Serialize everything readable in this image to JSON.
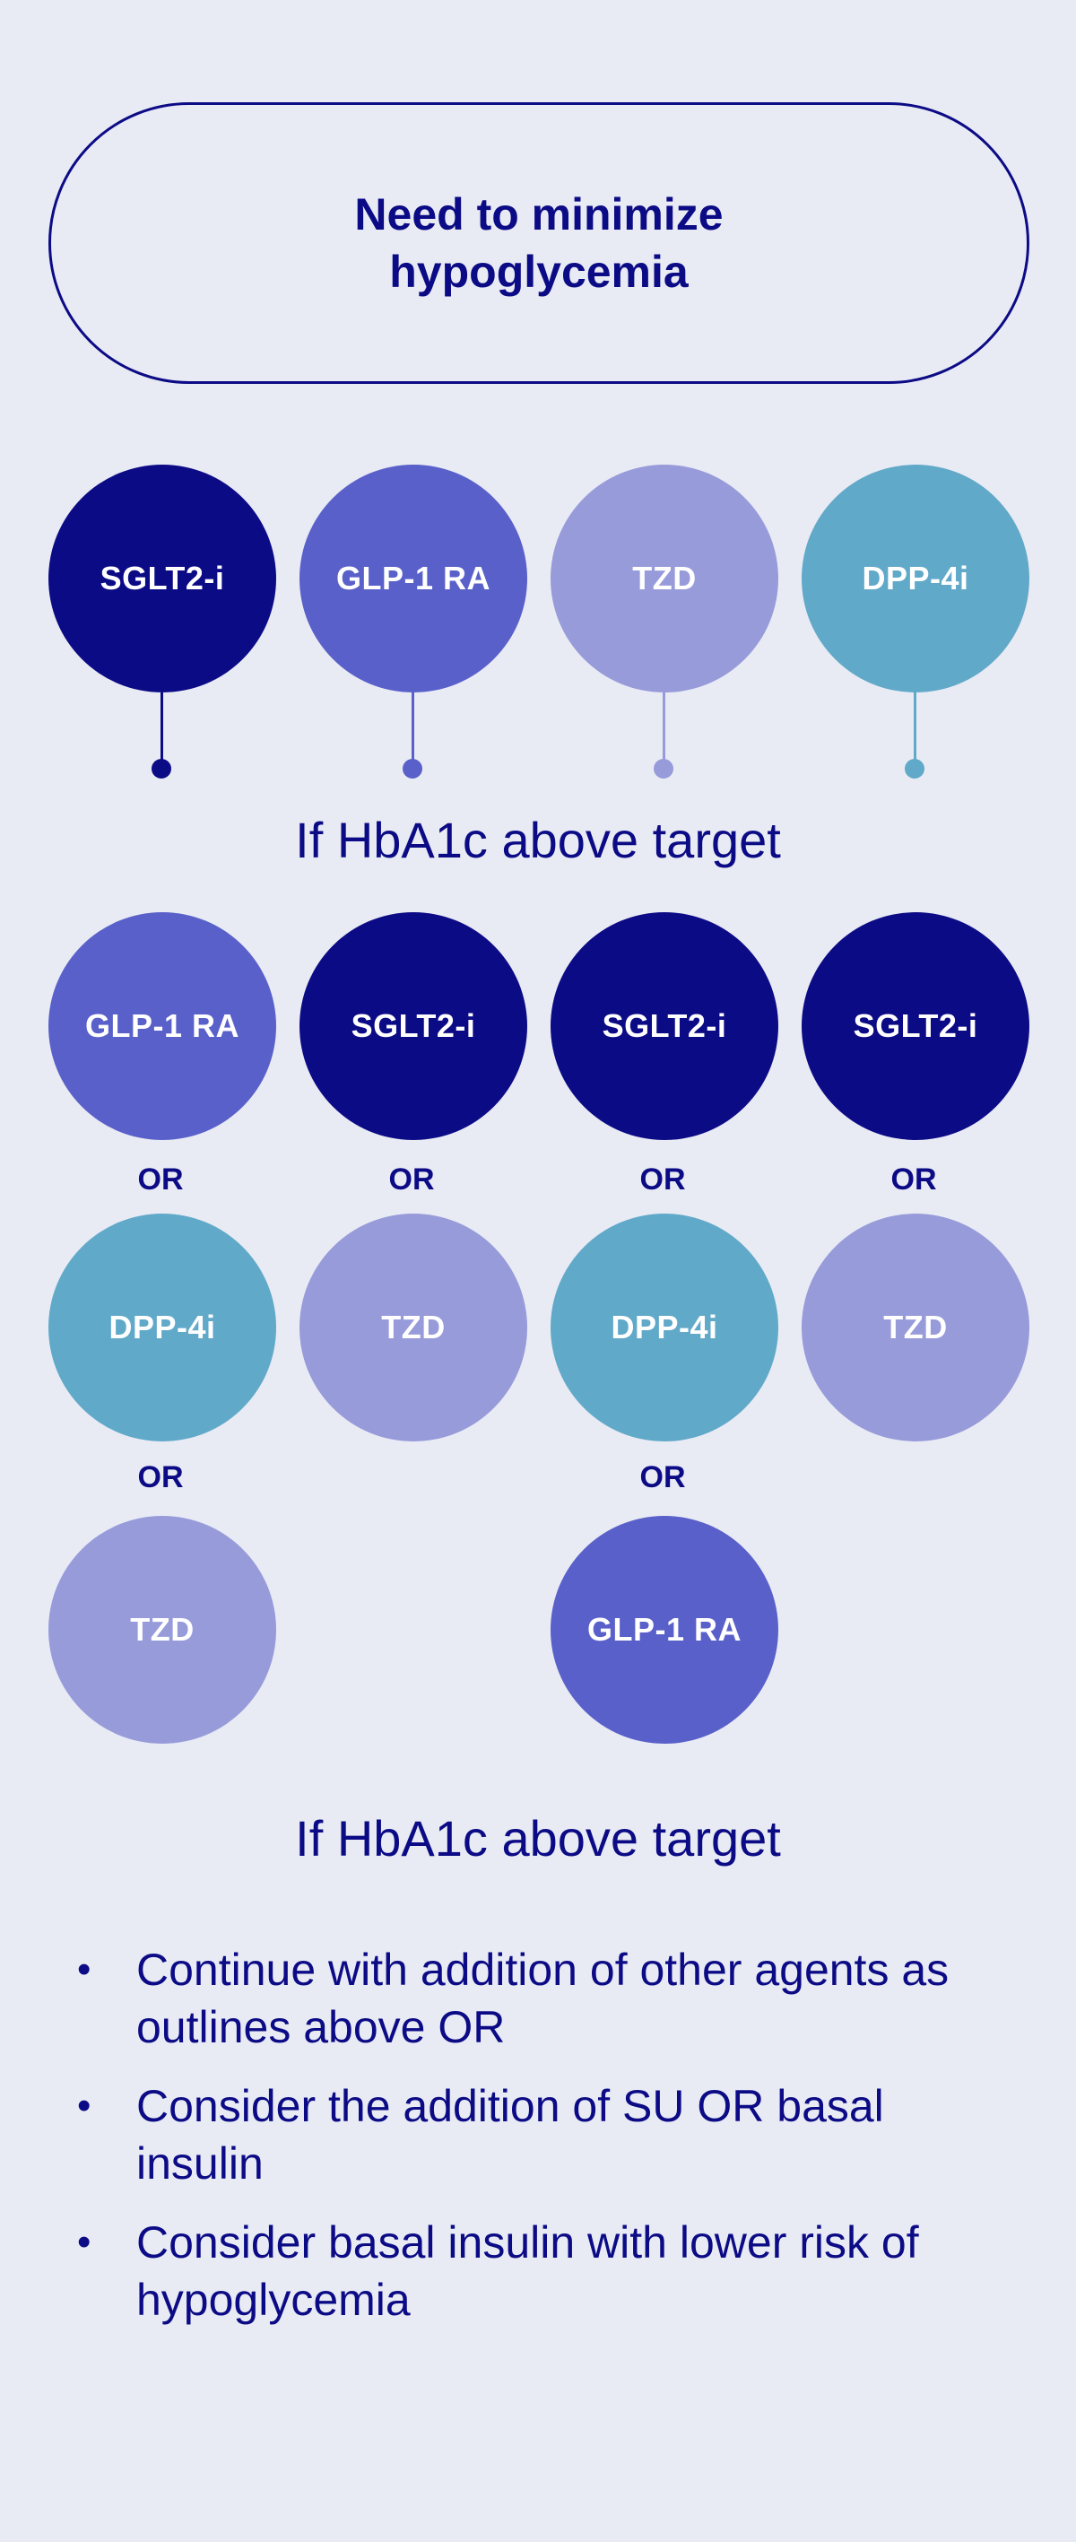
{
  "top_box": {
    "title": "Need to minimize hypoglycemia"
  },
  "first_row": [
    {
      "label": "SGLT2-i",
      "class": "sglt2"
    },
    {
      "label": "GLP-1 RA",
      "class": "glp1"
    },
    {
      "label": "TZD",
      "class": "tzd"
    },
    {
      "label": "DPP-4i",
      "class": "dpp4"
    }
  ],
  "connector_colors": [
    "#0C0B86",
    "#5960C9",
    "#979BDA",
    "#61A9C9"
  ],
  "colors": {
    "SGLT2-i": "#0C0B86",
    "GLP-1 RA": "#5960C9",
    "TZD": "#979BDA",
    "DPP-4i": "#61A9C9",
    "text": "#0C0B86",
    "background": "#E9EBF4"
  },
  "headings": {
    "first": "If HbA1c above target",
    "second": "If HbA1c above target"
  },
  "or_label": "OR",
  "columns": [
    {
      "options": [
        "GLP-1 RA",
        "DPP-4i",
        "TZD"
      ]
    },
    {
      "options": [
        "SGLT2-i",
        "TZD"
      ]
    },
    {
      "options": [
        "SGLT2-i",
        "DPP-4i",
        "GLP-1 RA"
      ]
    },
    {
      "options": [
        "SGLT2-i",
        "TZD"
      ]
    }
  ],
  "bullets": [
    "Continue with addition of other agents as outlines above OR",
    "Consider the addition of SU OR basal insulin",
    "Consider basal insulin with lower risk of hypoglycemia"
  ],
  "bullet_symbol": "•"
}
